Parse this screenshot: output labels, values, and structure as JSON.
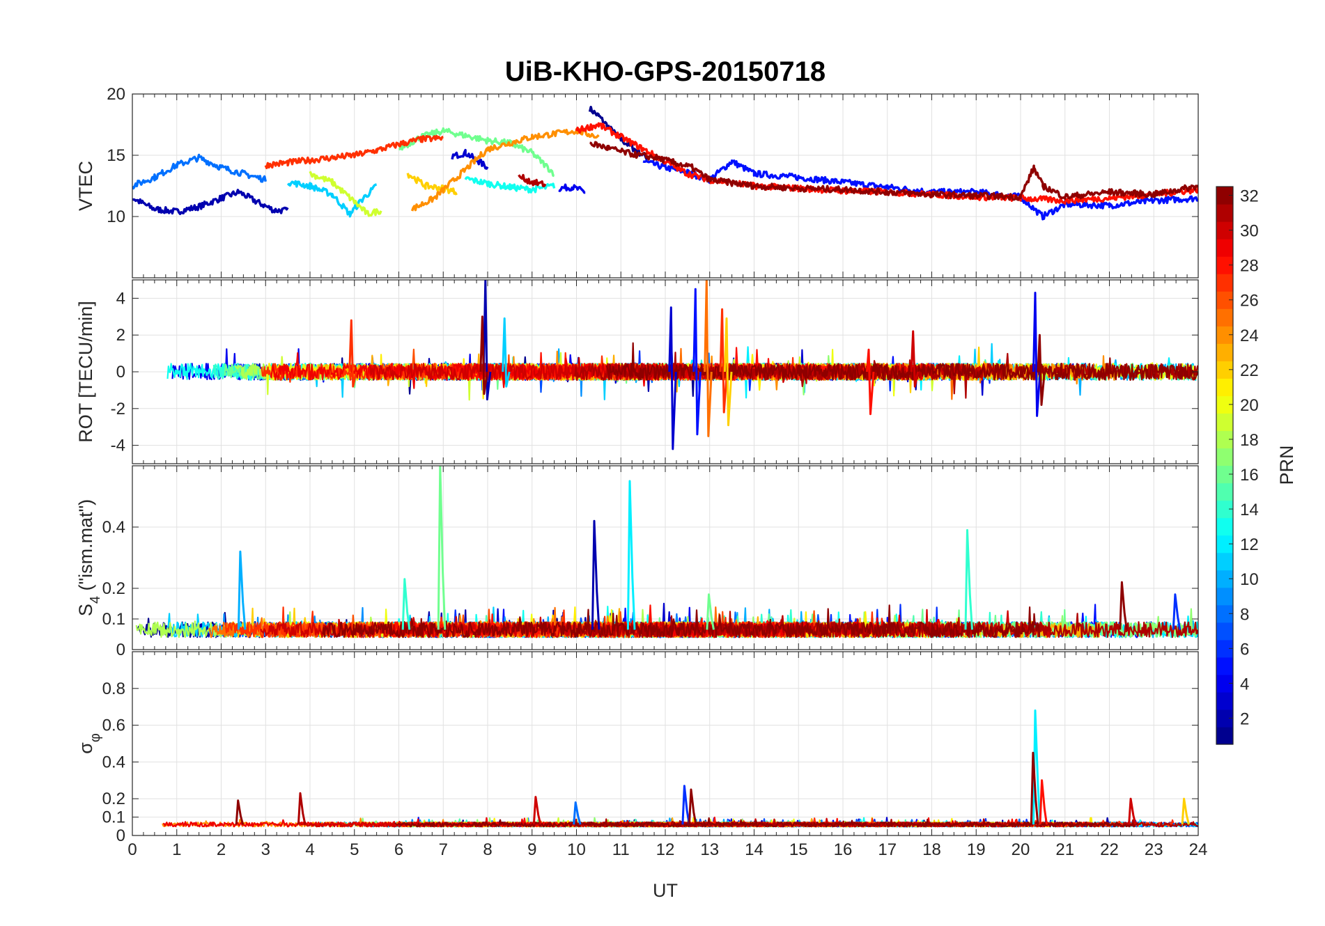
{
  "chart_data": {
    "type": "line",
    "title": "UiB-KHO-GPS-20150718",
    "xlabel": "UT",
    "xlim": [
      0,
      24
    ],
    "x_ticks": [
      "0",
      "1",
      "2",
      "3",
      "4",
      "5",
      "6",
      "7",
      "8",
      "9",
      "10",
      "11",
      "12",
      "13",
      "14",
      "15",
      "16",
      "17",
      "18",
      "19",
      "20",
      "21",
      "22",
      "23",
      "24"
    ],
    "colorbar": {
      "label": "PRN",
      "range": [
        1,
        32
      ],
      "ticks": [
        "2",
        "4",
        "6",
        "8",
        "10",
        "12",
        "14",
        "16",
        "18",
        "20",
        "22",
        "24",
        "26",
        "28",
        "30",
        "32"
      ],
      "colormap": "jet"
    },
    "panels": [
      {
        "name": "vtec",
        "ylabel": "VTEC",
        "ylim": [
          5,
          20
        ],
        "y_ticks": [
          "10",
          "15",
          "20"
        ],
        "series": [
          {
            "prn": 1,
            "x": [
              10.3,
              10.5,
              10.8,
              11.0,
              11.3,
              11.6
            ],
            "y": [
              18.8,
              18.2,
              17.0,
              16.3,
              15.5,
              14.8
            ]
          },
          {
            "prn": 2,
            "x": [
              0,
              0.5,
              1.0,
              1.5,
              2.0,
              2.4,
              2.8,
              3.2,
              3.5
            ],
            "y": [
              11.5,
              10.6,
              10.4,
              10.8,
              11.5,
              12.0,
              11.2,
              10.5,
              10.5
            ]
          },
          {
            "prn": 3,
            "x": [
              7.2,
              7.5,
              7.8,
              8.0
            ],
            "y": [
              14.9,
              15.2,
              14.5,
              14.0
            ]
          },
          {
            "prn": 4,
            "x": [
              9.6,
              9.9,
              10.2
            ],
            "y": [
              12.3,
              12.4,
              12.0
            ]
          },
          {
            "prn": 5,
            "x": [
              11.5,
              12.0,
              12.5,
              13.0,
              13.5,
              14.0,
              15.0,
              16.0,
              17.0,
              18.0,
              19.0,
              20.0,
              20.5,
              21.0,
              22.0,
              23.0,
              24.0
            ],
            "y": [
              14.5,
              14.0,
              13.6,
              13.0,
              14.5,
              13.5,
              13.2,
              12.8,
              12.4,
              12.0,
              12.0,
              11.6,
              10.0,
              11.0,
              10.9,
              11.3,
              11.5
            ]
          },
          {
            "prn": 8,
            "x": [
              0,
              0.5,
              1.0,
              1.5,
              2.0,
              2.5,
              3.0
            ],
            "y": [
              12.5,
              13.2,
              14.2,
              14.8,
              14.0,
              13.5,
              13.0
            ]
          },
          {
            "prn": 11,
            "x": [
              3.5,
              4.0,
              4.5,
              4.9,
              5.2,
              5.5
            ],
            "y": [
              12.8,
              12.5,
              11.8,
              10.2,
              11.5,
              12.5
            ]
          },
          {
            "prn": 13,
            "x": [
              7.5,
              8.0,
              8.5,
              9.0,
              9.5
            ],
            "y": [
              13.1,
              12.7,
              12.4,
              12.2,
              12.5
            ]
          },
          {
            "prn": 16,
            "x": [
              6.0,
              6.5,
              7.0,
              7.5,
              8.0,
              8.5,
              9.0,
              9.5
            ],
            "y": [
              15.5,
              16.5,
              17.0,
              16.6,
              16.2,
              16.0,
              15.2,
              13.5
            ]
          },
          {
            "prn": 19,
            "x": [
              4.0,
              4.5,
              5.0,
              5.3,
              5.6
            ],
            "y": [
              13.5,
              12.8,
              11.2,
              10.2,
              10.5
            ]
          },
          {
            "prn": 22,
            "x": [
              6.2,
              6.6,
              7.0,
              7.3
            ],
            "y": [
              13.5,
              12.5,
              12.3,
              12.0
            ]
          },
          {
            "prn": 24,
            "x": [
              6.3,
              6.8,
              7.4,
              8.0,
              9.0,
              10.0,
              10.5
            ],
            "y": [
              10.6,
              11.5,
              13.5,
              15.5,
              16.5,
              17.0,
              16.5
            ]
          },
          {
            "prn": 27,
            "x": [
              3.0,
              3.5,
              4.0,
              4.5,
              5.0,
              5.5,
              6.0,
              6.5,
              7.0
            ],
            "y": [
              14.2,
              14.4,
              14.6,
              14.8,
              15.0,
              15.4,
              15.9,
              16.3,
              16.4
            ]
          },
          {
            "prn": 28,
            "x": [
              10.0,
              10.5,
              11.0,
              11.5,
              12.0,
              12.5,
              13.0,
              14.0,
              15.0,
              16.0,
              17.0,
              18.0,
              19.0,
              20.0,
              21.0,
              22.0,
              23.0,
              24.0
            ],
            "y": [
              17.0,
              17.5,
              16.5,
              15.5,
              14.5,
              13.5,
              13.0,
              12.5,
              12.3,
              12.1,
              12.0,
              11.8,
              11.6,
              11.5,
              11.3,
              11.5,
              11.8,
              12.2
            ]
          },
          {
            "prn": 31,
            "x": [
              8.7,
              9.0,
              9.3
            ],
            "y": [
              13.3,
              12.8,
              12.6
            ]
          },
          {
            "prn": 32,
            "x": [
              10.3,
              10.7,
              11.0,
              11.4,
              11.8,
              12.2,
              12.6,
              13.0,
              14.0,
              15.0,
              16.0,
              17.0,
              18.0,
              19.0,
              20.0,
              20.3,
              20.5,
              21.0,
              22.0,
              23.0,
              24.0
            ],
            "y": [
              16.0,
              15.6,
              15.3,
              15.0,
              14.8,
              14.4,
              14.0,
              13.0,
              12.5,
              12.3,
              12.2,
              12.0,
              11.8,
              11.7,
              11.6,
              14.0,
              12.5,
              11.6,
              12.0,
              11.8,
              12.5
            ]
          }
        ]
      },
      {
        "name": "rot",
        "ylabel": "ROT [TECU/min]",
        "ylim": [
          -5,
          5
        ],
        "y_ticks": [
          "-4",
          "-2",
          "0",
          "2",
          "4"
        ],
        "spikes": [
          {
            "prn": 27,
            "t": 4.95,
            "max": 2.8,
            "min": -0.8
          },
          {
            "prn": 2,
            "t": 7.97,
            "max": 5.0,
            "min": -1.5
          },
          {
            "prn": 11,
            "t": 8.4,
            "max": 2.9,
            "min": -0.8
          },
          {
            "prn": 32,
            "t": 7.9,
            "max": 3.0,
            "min": -1.2
          },
          {
            "prn": 3,
            "t": 12.15,
            "max": 3.5,
            "min": -4.2
          },
          {
            "prn": 5,
            "t": 12.7,
            "max": 4.5,
            "min": -3.4
          },
          {
            "prn": 25,
            "t": 12.95,
            "max": 5.0,
            "min": -3.5
          },
          {
            "prn": 27,
            "t": 13.3,
            "max": 3.4,
            "min": -2.2
          },
          {
            "prn": 22,
            "t": 13.4,
            "max": 2.9,
            "min": -2.9
          },
          {
            "prn": 28,
            "t": 16.6,
            "max": 1.2,
            "min": -2.3
          },
          {
            "prn": 30,
            "t": 17.6,
            "max": 2.2,
            "min": -0.8
          },
          {
            "prn": 4,
            "t": 20.35,
            "max": 4.3,
            "min": -2.4
          },
          {
            "prn": 32,
            "t": 20.45,
            "max": 2.0,
            "min": -1.8
          }
        ]
      },
      {
        "name": "s4",
        "ylabel": "S4 (\"ism.mat\")",
        "ylabel_main": "S",
        "ylabel_sub": "4",
        "ylabel_rest": " (\"ism.mat\")",
        "ylim": [
          0,
          0.6
        ],
        "y_ticks": [
          "0",
          "0.1",
          "0.2",
          "0.4"
        ],
        "spikes": [
          {
            "prn": 10,
            "t": 2.45,
            "max": 0.32
          },
          {
            "prn": 16,
            "t": 6.95,
            "max": 0.6
          },
          {
            "prn": 14,
            "t": 6.15,
            "max": 0.23
          },
          {
            "prn": 2,
            "t": 10.42,
            "max": 0.42
          },
          {
            "prn": 12,
            "t": 11.22,
            "max": 0.55
          },
          {
            "prn": 14,
            "t": 18.82,
            "max": 0.39
          },
          {
            "prn": 32,
            "t": 22.3,
            "max": 0.22
          },
          {
            "prn": 6,
            "t": 23.5,
            "max": 0.18
          },
          {
            "prn": 16,
            "t": 13.0,
            "max": 0.18
          }
        ]
      },
      {
        "name": "sigma-phi",
        "ylabel": "σφ",
        "ylabel_main": "σ",
        "ylabel_sub": "φ",
        "ylim": [
          0,
          1
        ],
        "y_ticks": [
          "0",
          "0.1",
          "0.2",
          "0.4",
          "0.6",
          "0.8"
        ],
        "spikes": [
          {
            "prn": 12,
            "t": 20.35,
            "max": 0.68
          },
          {
            "prn": 32,
            "t": 20.3,
            "max": 0.45
          },
          {
            "prn": 28,
            "t": 20.5,
            "max": 0.3
          },
          {
            "prn": 31,
            "t": 3.8,
            "max": 0.23
          },
          {
            "prn": 32,
            "t": 2.4,
            "max": 0.19
          },
          {
            "prn": 30,
            "t": 9.1,
            "max": 0.21
          },
          {
            "prn": 6,
            "t": 12.45,
            "max": 0.27
          },
          {
            "prn": 32,
            "t": 12.6,
            "max": 0.25
          },
          {
            "prn": 8,
            "t": 10.0,
            "max": 0.18
          },
          {
            "prn": 30,
            "t": 22.5,
            "max": 0.2
          },
          {
            "prn": 22,
            "t": 23.7,
            "max": 0.2
          }
        ]
      }
    ]
  }
}
